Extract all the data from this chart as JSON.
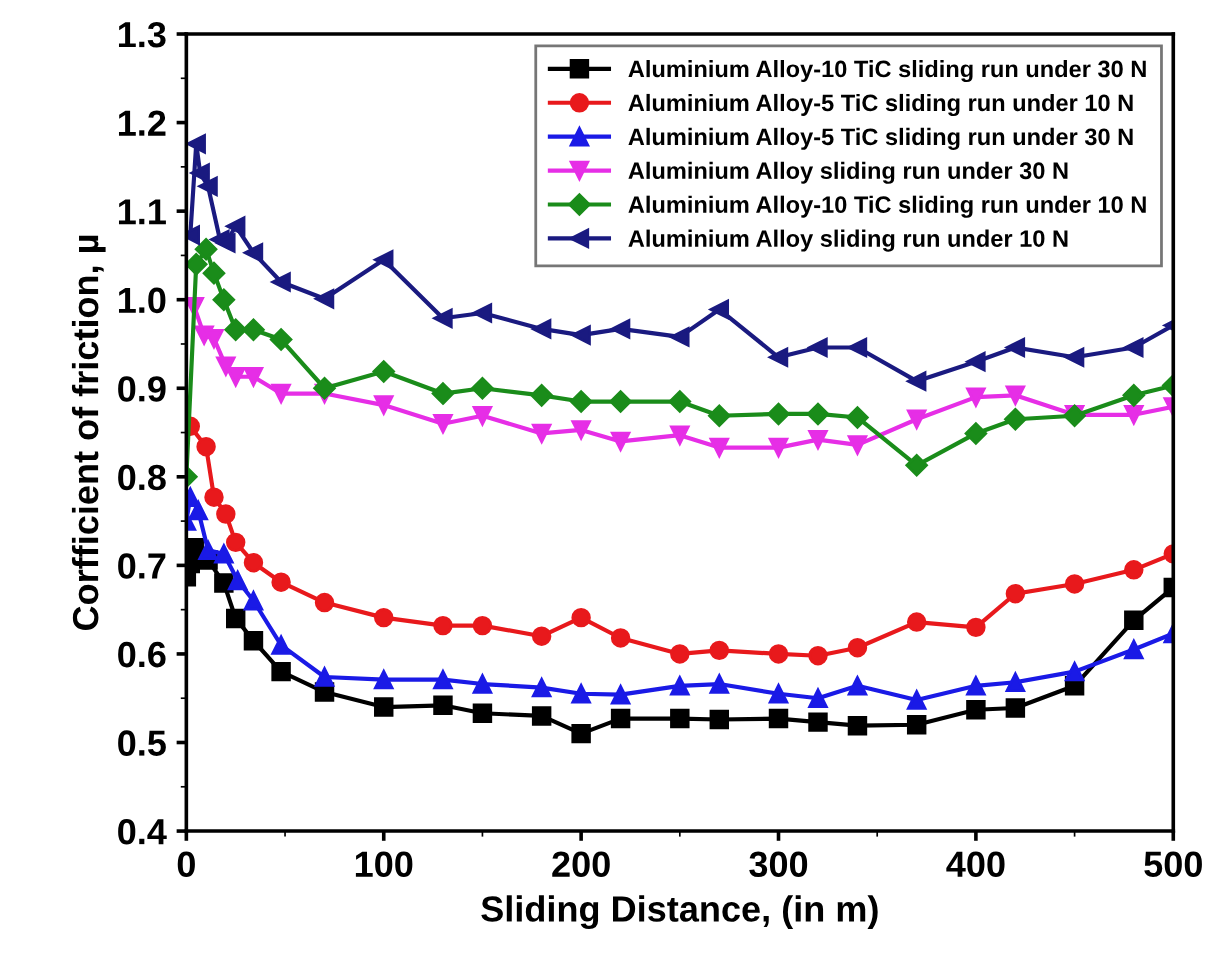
{
  "chart_data": {
    "type": "line",
    "xlabel": "Sliding Distance, (in m)",
    "ylabel": "Corfficient of friction, µ",
    "xlim": [
      0,
      500
    ],
    "ylim": [
      0.4,
      1.3
    ],
    "xticks": [
      0,
      100,
      200,
      300,
      400,
      500
    ],
    "yticks": [
      {
        "value": 0.4,
        "label": "0.4"
      },
      {
        "value": 0.5,
        "label": "0.5"
      },
      {
        "value": 0.6,
        "label": "0.6"
      },
      {
        "value": 0.7,
        "label": "0.7"
      },
      {
        "value": 0.8,
        "label": "0.8"
      },
      {
        "value": 0.9,
        "label": "0.9"
      },
      {
        "value": 1.0,
        "label": "1.0"
      },
      {
        "value": 1.1,
        "label": "1.1"
      },
      {
        "value": 1.2,
        "label": "1.2"
      },
      {
        "value": 1.3,
        "label": "1.3"
      }
    ],
    "grid": false,
    "legend": "top right",
    "line_style": "solid",
    "series": [
      {
        "name": "Aluminium Alloy-10 TiC sliding run under 30 N",
        "color": "#000000",
        "marker": "square",
        "x": [
          0,
          2,
          4,
          11,
          19,
          25,
          34,
          48,
          70,
          100,
          130,
          150,
          180,
          200,
          220,
          250,
          270,
          300,
          320,
          340,
          370,
          400,
          420,
          450,
          480,
          500
        ],
        "values": [
          0.687,
          0.702,
          0.72,
          0.706,
          0.68,
          0.64,
          0.615,
          0.58,
          0.557,
          0.54,
          0.542,
          0.533,
          0.53,
          0.51,
          0.527,
          0.527,
          0.526,
          0.527,
          0.523,
          0.519,
          0.52,
          0.537,
          0.539,
          0.564,
          0.638,
          0.675
        ]
      },
      {
        "name": "Aluminium Alloy-5 TiC sliding run under 10 N",
        "color": "#e8191c",
        "marker": "circle",
        "x": [
          2,
          10,
          14,
          20,
          25,
          34,
          48,
          70,
          100,
          130,
          150,
          180,
          200,
          220,
          250,
          270,
          300,
          320,
          340,
          370,
          400,
          420,
          450,
          480,
          500
        ],
        "values": [
          0.857,
          0.834,
          0.777,
          0.758,
          0.726,
          0.703,
          0.681,
          0.658,
          0.641,
          0.632,
          0.632,
          0.62,
          0.641,
          0.618,
          0.6,
          0.604,
          0.6,
          0.598,
          0.607,
          0.636,
          0.63,
          0.668,
          0.679,
          0.695,
          0.713
        ]
      },
      {
        "name": "Aluminium Alloy-5 TiC sliding run under 30 N",
        "color": "#1a1ae6",
        "marker": "triangle",
        "x": [
          0,
          2,
          6,
          11,
          19,
          26,
          34,
          48,
          70,
          100,
          130,
          150,
          180,
          200,
          220,
          250,
          270,
          300,
          320,
          340,
          370,
          400,
          420,
          450,
          480,
          500
        ],
        "values": [
          0.75,
          0.777,
          0.762,
          0.717,
          0.713,
          0.683,
          0.66,
          0.61,
          0.574,
          0.571,
          0.571,
          0.566,
          0.562,
          0.555,
          0.554,
          0.564,
          0.566,
          0.555,
          0.55,
          0.564,
          0.548,
          0.564,
          0.568,
          0.58,
          0.605,
          0.623
        ]
      },
      {
        "name": "Aluminium Alloy sliding run under 30 N",
        "color": "#e62ee6",
        "marker": "triangle_down",
        "x": [
          4,
          9,
          14,
          20,
          25,
          34,
          48,
          70,
          100,
          130,
          150,
          180,
          200,
          220,
          250,
          270,
          300,
          320,
          340,
          370,
          400,
          420,
          450,
          480,
          500
        ],
        "values": [
          0.992,
          0.96,
          0.956,
          0.925,
          0.913,
          0.913,
          0.894,
          0.894,
          0.881,
          0.86,
          0.869,
          0.849,
          0.853,
          0.84,
          0.847,
          0.833,
          0.833,
          0.842,
          0.836,
          0.865,
          0.89,
          0.892,
          0.87,
          0.87,
          0.879
        ]
      },
      {
        "name": "Aluminium Alloy-10 TiC sliding run under 10 N",
        "color": "#1a8c1a",
        "marker": "diamond",
        "x": [
          0,
          5,
          10,
          14,
          19,
          25,
          34,
          48,
          70,
          100,
          130,
          150,
          180,
          200,
          220,
          250,
          270,
          300,
          320,
          340,
          370,
          400,
          420,
          450,
          480,
          500
        ],
        "values": [
          0.8,
          1.04,
          1.057,
          1.03,
          1.0,
          0.966,
          0.966,
          0.955,
          0.9,
          0.919,
          0.894,
          0.9,
          0.892,
          0.885,
          0.885,
          0.885,
          0.869,
          0.871,
          0.871,
          0.867,
          0.813,
          0.849,
          0.865,
          0.869,
          0.892,
          0.903
        ]
      },
      {
        "name": "Aluminium Alloy sliding run under 10 N",
        "color": "#1a1a80",
        "marker": "triangle_left",
        "x": [
          2,
          5,
          7,
          11,
          17,
          20,
          25,
          34,
          48,
          70,
          100,
          130,
          150,
          180,
          200,
          220,
          250,
          270,
          300,
          320,
          340,
          370,
          400,
          420,
          450,
          480,
          500
        ],
        "values": [
          1.073,
          1.176,
          1.143,
          1.128,
          1.068,
          1.064,
          1.083,
          1.053,
          1.02,
          1.001,
          1.045,
          0.979,
          0.985,
          0.967,
          0.96,
          0.967,
          0.958,
          0.989,
          0.935,
          0.946,
          0.946,
          0.908,
          0.93,
          0.946,
          0.935,
          0.946,
          0.971
        ]
      }
    ]
  }
}
